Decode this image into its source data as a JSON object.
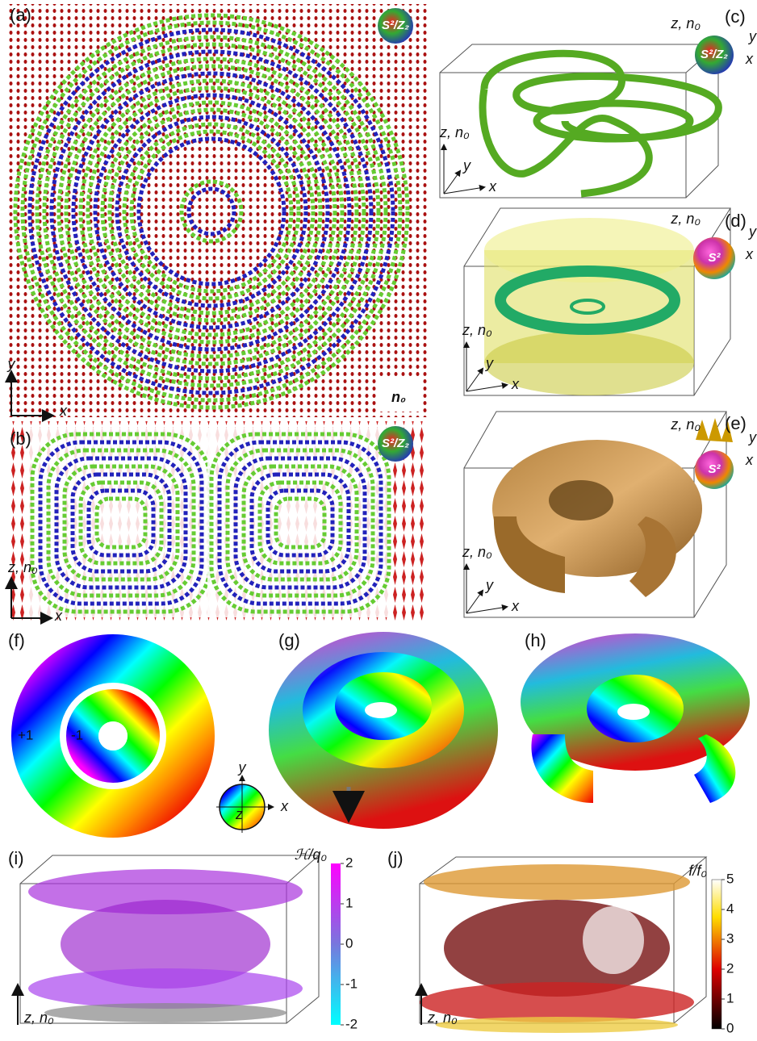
{
  "panels": {
    "a": {
      "label": "(a)",
      "badge": "S²/Z₂",
      "y_axis": "y",
      "x_axis": "x",
      "normal": "n₀"
    },
    "b": {
      "label": "(b)",
      "badge": "S²/Z₂",
      "z_axis": "z, n₀",
      "x_axis": "x"
    },
    "c": {
      "label": "(c)",
      "z_axis": "z, n₀",
      "y_axis": "y",
      "x_axis": "x",
      "badge": "S²/Z₂",
      "badge_z": "z, n₀",
      "badge_y": "y",
      "badge_x": "x"
    },
    "d": {
      "label": "(d)",
      "z_axis": "z, n₀",
      "y_axis": "y",
      "x_axis": "x",
      "badge": "S²",
      "badge_z": "z, n₀",
      "badge_y": "y",
      "badge_x": "x"
    },
    "e": {
      "label": "(e)",
      "z_axis": "z, n₀",
      "y_axis": "y",
      "x_axis": "x",
      "badge": "S²",
      "badge_z": "z, n₀",
      "badge_y": "y",
      "badge_x": "x"
    },
    "f": {
      "label": "(f)",
      "outer_charge": "+1",
      "inner_charge": "-1",
      "wheel_y": "y",
      "wheel_x": "x",
      "wheel_z": "z"
    },
    "g": {
      "label": "(g)"
    },
    "h": {
      "label": "(h)"
    },
    "i": {
      "label": "(i)",
      "z_axis": "z, n₀",
      "colorbar_title": "ℋ/q₀",
      "colorbar_ticks": [
        2,
        1,
        0,
        -1,
        -2
      ]
    },
    "j": {
      "label": "(j)",
      "z_axis": "z, n₀",
      "colorbar_title": "f/f₀",
      "colorbar_ticks": [
        5,
        4,
        3,
        2,
        1,
        0
      ]
    }
  }
}
